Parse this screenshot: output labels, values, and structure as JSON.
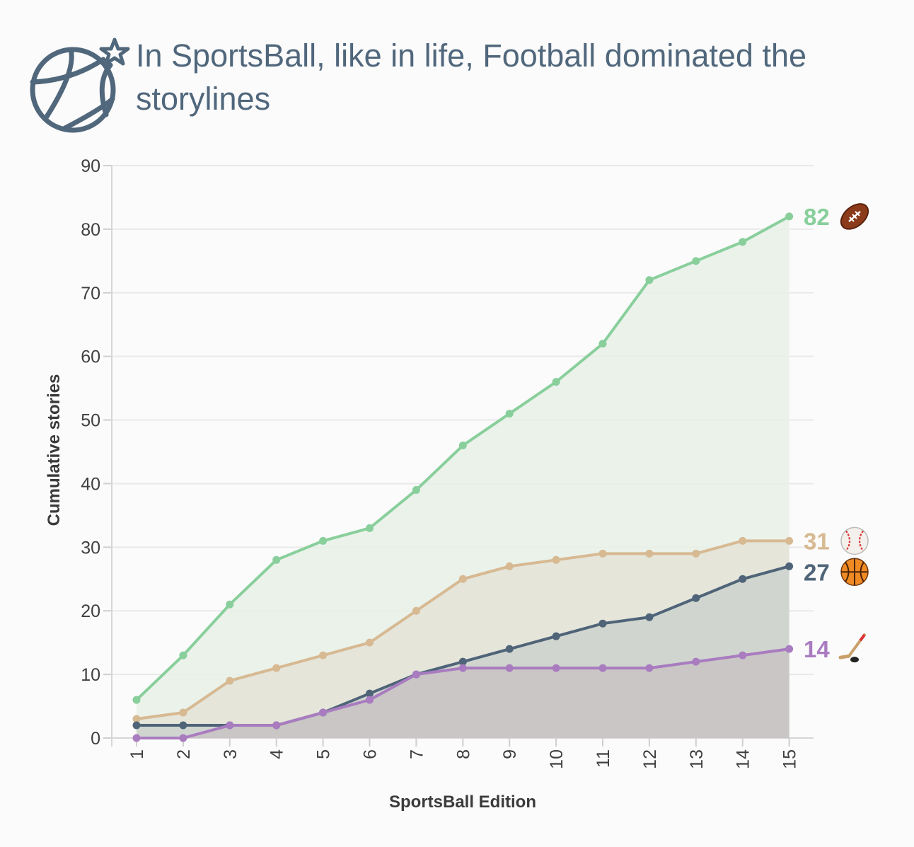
{
  "header": {
    "title": "In SportsBall, like in life, Football dominated the storylines",
    "logo_icon": "basketball-star-icon"
  },
  "chart_data": {
    "type": "area",
    "title": "In SportsBall, like in life, Football dominated the storylines",
    "xlabel": "SportsBall Edition",
    "ylabel": "Cumulative stories",
    "x": [
      1,
      2,
      3,
      4,
      5,
      6,
      7,
      8,
      9,
      10,
      11,
      12,
      13,
      14,
      15
    ],
    "ylim": [
      0,
      90
    ],
    "yticks": [
      0,
      10,
      20,
      30,
      40,
      50,
      60,
      70,
      80,
      90
    ],
    "grid": true,
    "series": [
      {
        "name": "Football",
        "icon": "football-icon",
        "color": "#89cf9c",
        "fill": "#e6f0e6",
        "values": [
          6,
          13,
          21,
          28,
          31,
          33,
          39,
          46,
          51,
          56,
          62,
          72,
          75,
          78,
          82
        ],
        "end_label": "82"
      },
      {
        "name": "Baseball",
        "icon": "baseball-icon",
        "color": "#d7b992",
        "fill": "#e4e3d7",
        "values": [
          3,
          4,
          9,
          11,
          13,
          15,
          20,
          25,
          27,
          28,
          29,
          29,
          29,
          31,
          31
        ],
        "end_label": "31"
      },
      {
        "name": "Basketball",
        "icon": "basketball-icon",
        "color": "#4f6478",
        "fill": "#cdd3cd",
        "values": [
          2,
          2,
          2,
          2,
          4,
          7,
          10,
          12,
          14,
          16,
          18,
          19,
          22,
          25,
          27
        ],
        "end_label": "27"
      },
      {
        "name": "Hockey",
        "icon": "hockey-stick-icon",
        "color": "#a97cc0",
        "fill": "#c8c3c3",
        "values": [
          0,
          0,
          2,
          2,
          4,
          6,
          10,
          11,
          11,
          11,
          11,
          11,
          12,
          13,
          14
        ],
        "end_label": "14"
      }
    ]
  }
}
